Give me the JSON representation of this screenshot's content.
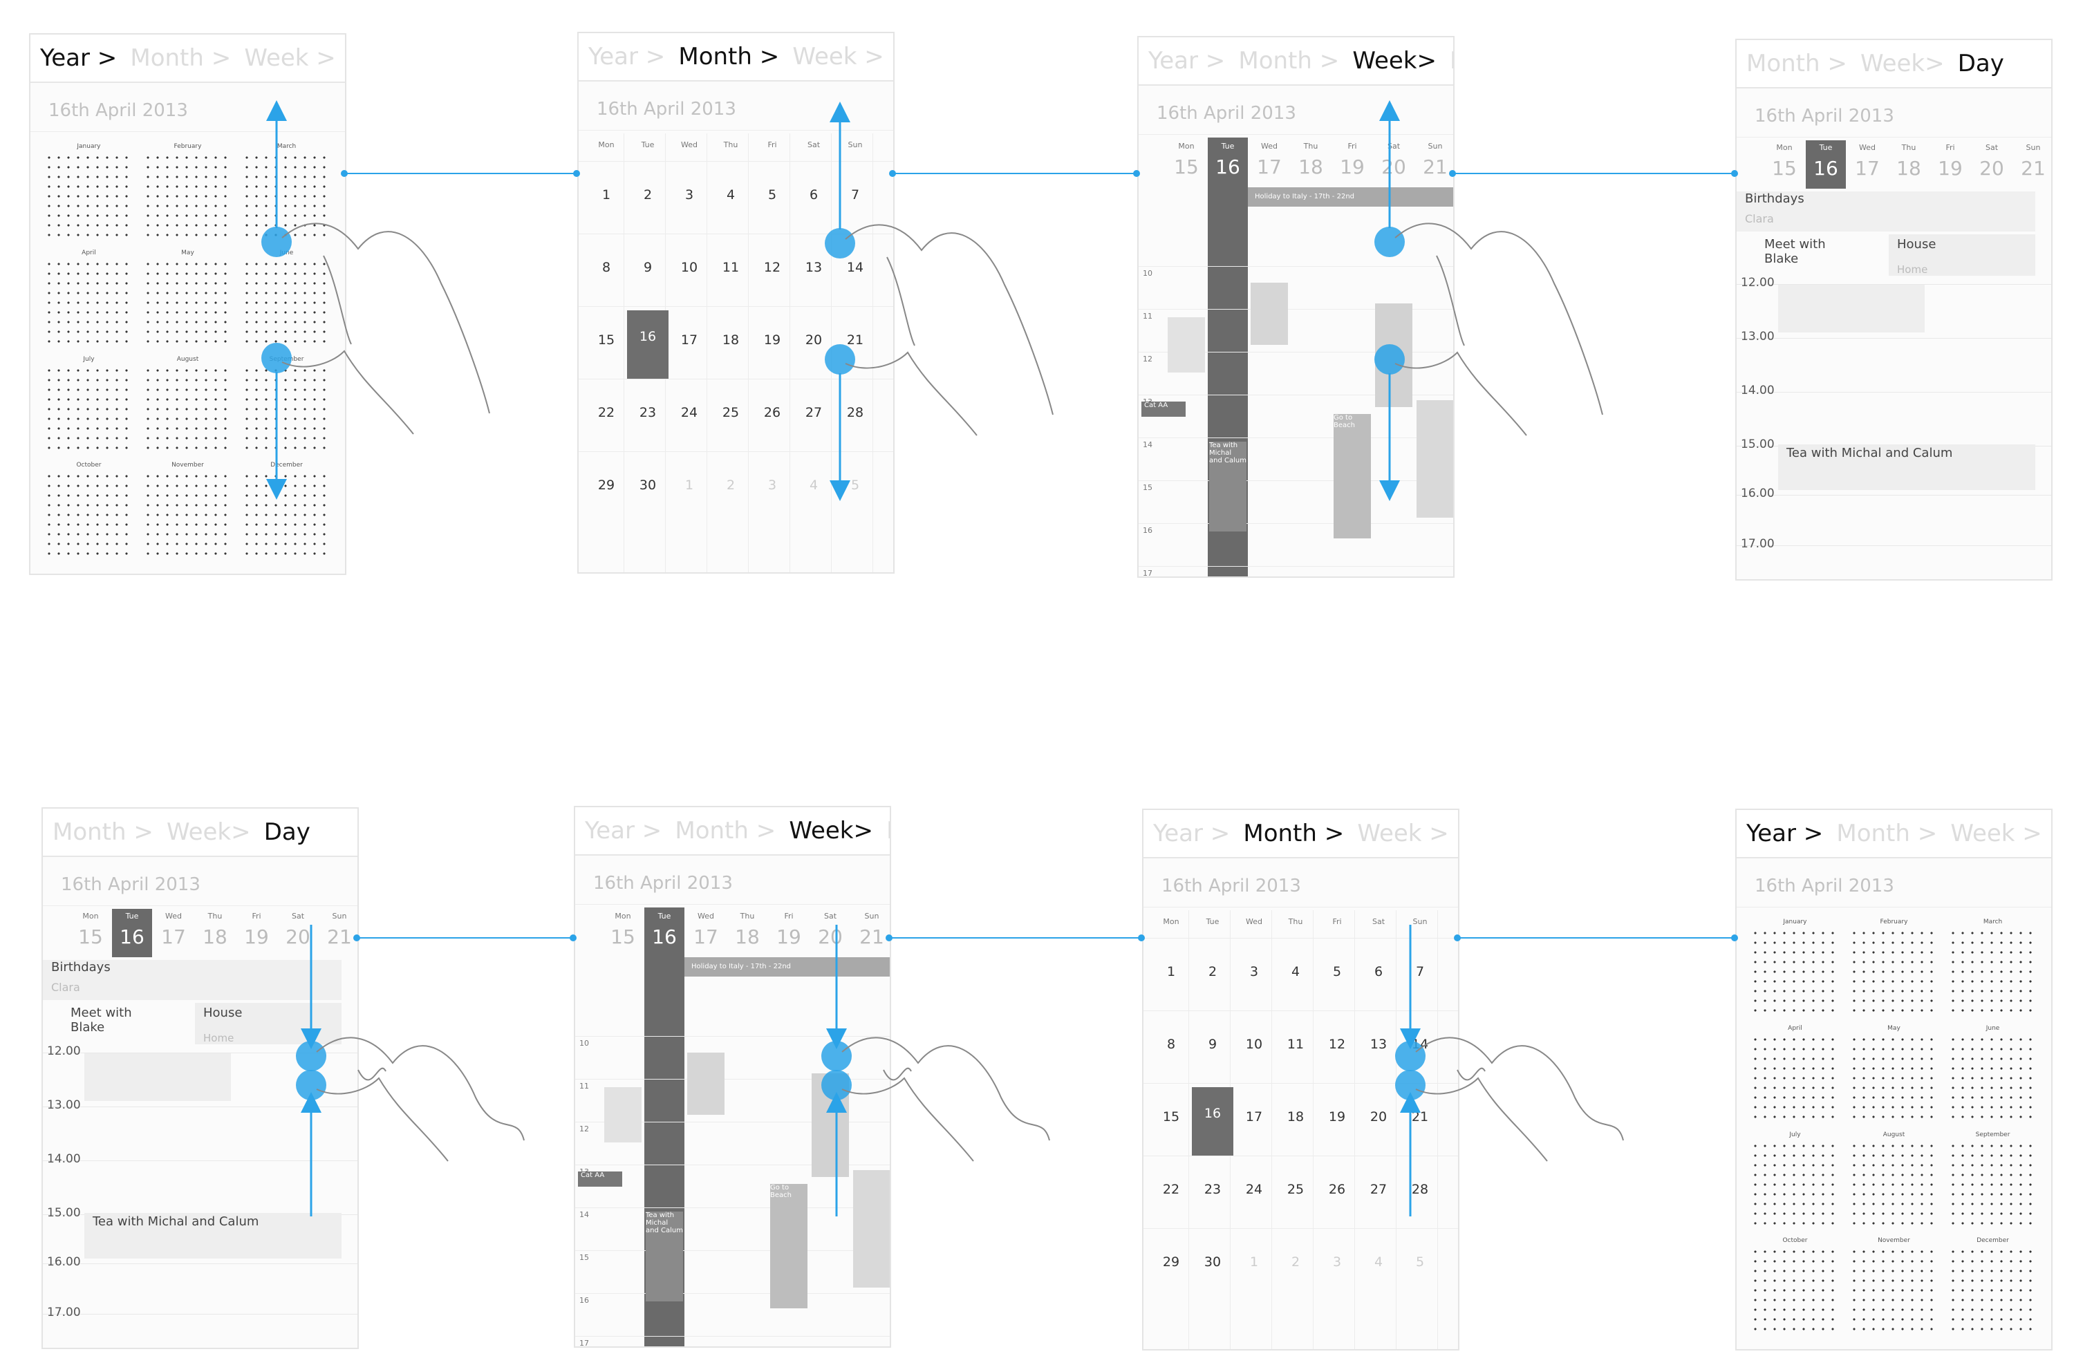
{
  "breadcrumbs": {
    "year": "Year >",
    "month": "Month >",
    "week_short": "Week > D",
    "month_dim": "Month >",
    "week": "Week>",
    "day": "Day",
    "year_dim": "Year >",
    "day_dim": "Da"
  },
  "date_label": "16th April 2013",
  "year_months": [
    "January",
    "February",
    "March",
    "April",
    "May",
    "June",
    "July",
    "August",
    "September",
    "October",
    "November",
    "December"
  ],
  "weekday_short": [
    "Mon",
    "Tue",
    "Wed",
    "Thu",
    "Fri",
    "Sat",
    "Sun"
  ],
  "month_weeks": [
    [
      "1",
      "2",
      "3",
      "4",
      "5",
      "6",
      "7"
    ],
    [
      "8",
      "9",
      "10",
      "11",
      "12",
      "13",
      "14"
    ],
    [
      "15",
      "16",
      "17",
      "18",
      "19",
      "20",
      "21"
    ],
    [
      "22",
      "23",
      "24",
      "25",
      "26",
      "27",
      "28"
    ],
    [
      "29",
      "30",
      "1",
      "2",
      "3",
      "4",
      "5"
    ]
  ],
  "week_days": [
    "15",
    "16",
    "17",
    "18",
    "19",
    "20",
    "21"
  ],
  "week_hours": [
    "10",
    "11",
    "12",
    "13",
    "14",
    "15",
    "16",
    "17"
  ],
  "week_events": {
    "holiday": "Holiday to Italy - 17th - 22nd",
    "cat": "Cat AA",
    "tea": "Tea with Michal and Calum",
    "beach": "Go to Beach"
  },
  "day_view": {
    "birthdays": "Birthdays",
    "birthday_name": "Clara",
    "meet": "Meet with Blake",
    "house": "House",
    "home": "Home",
    "times": [
      "12.00",
      "13.00",
      "14.00",
      "15.00",
      "16.00",
      "17.00"
    ],
    "tea": "Tea with Michal and Calum"
  },
  "colors": {
    "accent": "#2ba3e8",
    "selected": "#6e6e6e"
  }
}
